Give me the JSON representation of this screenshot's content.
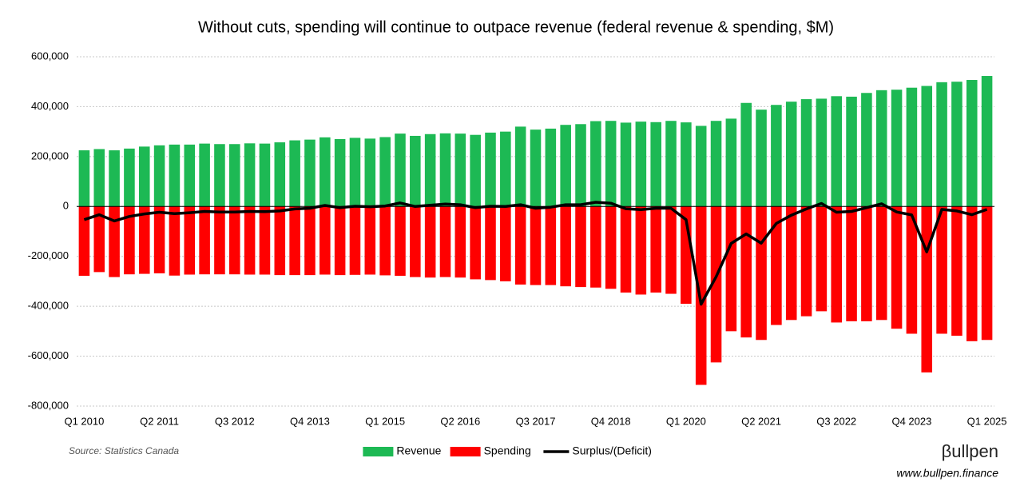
{
  "chart_data": {
    "type": "bar",
    "title": "Without cuts, spending will continue to outpace revenue (federal revenue & spending, $M)",
    "categories": [
      "Q1 2010",
      null,
      null,
      null,
      null,
      "Q2 2011",
      null,
      null,
      null,
      null,
      "Q3 2012",
      null,
      null,
      null,
      null,
      "Q4 2013",
      null,
      null,
      null,
      null,
      "Q1 2015",
      null,
      null,
      null,
      null,
      "Q2 2016",
      null,
      null,
      null,
      null,
      "Q3 2017",
      null,
      null,
      null,
      null,
      "Q4 2018",
      null,
      null,
      null,
      null,
      "Q1 2020",
      null,
      null,
      null,
      null,
      "Q2 2021",
      null,
      null,
      null,
      null,
      "Q3 2022",
      null,
      null,
      null,
      null,
      "Q4 2023",
      null,
      null,
      null,
      null,
      "Q1 2025"
    ],
    "series": [
      {
        "name": "Revenue",
        "type": "bar",
        "color": "#1db954",
        "values": [
          225000,
          230000,
          225000,
          232000,
          240000,
          245000,
          248000,
          248000,
          252000,
          250000,
          250000,
          253000,
          252000,
          257000,
          265000,
          268000,
          277000,
          270000,
          275000,
          272000,
          278000,
          292000,
          283000,
          290000,
          293000,
          292000,
          287000,
          296000,
          300000,
          320000,
          308000,
          312000,
          327000,
          330000,
          342000,
          343000,
          336000,
          340000,
          338000,
          343000,
          337000,
          323000,
          343000,
          352000,
          415000,
          388000,
          407000,
          420000,
          430000,
          432000,
          442000,
          440000,
          455000,
          466000,
          468000,
          476000,
          483000,
          498000,
          500000,
          507000,
          523000
        ]
      },
      {
        "name": "Spending",
        "type": "bar",
        "color": "#ff0000",
        "values": [
          -278000,
          -263000,
          -283000,
          -272000,
          -270000,
          -268000,
          -277000,
          -273000,
          -272000,
          -272000,
          -272000,
          -273000,
          -273000,
          -275000,
          -275000,
          -275000,
          -273000,
          -275000,
          -274000,
          -273000,
          -276000,
          -278000,
          -283000,
          -285000,
          -283000,
          -285000,
          -292000,
          -295000,
          -300000,
          -313000,
          -315000,
          -315000,
          -320000,
          -323000,
          -325000,
          -330000,
          -345000,
          -353000,
          -345000,
          -350000,
          -390000,
          -715000,
          -625000,
          -500000,
          -525000,
          -535000,
          -475000,
          -455000,
          -440000,
          -420000,
          -465000,
          -460000,
          -460000,
          -455000,
          -490000,
          -510000,
          -665000,
          -510000,
          -518000,
          -540000,
          -535000
        ]
      },
      {
        "name": "Surplus/(Deficit)",
        "type": "line",
        "color": "#000000",
        "values": [
          -53000,
          -33000,
          -58000,
          -40000,
          -30000,
          -23000,
          -29000,
          -25000,
          -20000,
          -22000,
          -22000,
          -20000,
          -21000,
          -18000,
          -10000,
          -7000,
          4000,
          -5000,
          1000,
          -1000,
          2000,
          14000,
          0,
          5000,
          10000,
          7000,
          -5000,
          1000,
          0,
          7000,
          -7000,
          -3000,
          7000,
          7000,
          17000,
          13000,
          -9000,
          -13000,
          -7000,
          -7000,
          -53000,
          -392000,
          -282000,
          -148000,
          -110000,
          -147000,
          -68000,
          -35000,
          -10000,
          12000,
          -23000,
          -20000,
          -5000,
          11000,
          -22000,
          -34000,
          -182000,
          -12000,
          -18000,
          -33000,
          -12000
        ]
      }
    ],
    "ylim": [
      -800000,
      600000
    ],
    "yticks": [
      {
        "value": -800000,
        "label": "-800,000"
      },
      {
        "value": -600000,
        "label": "-600,000"
      },
      {
        "value": -400000,
        "label": "-400,000"
      },
      {
        "value": -200000,
        "label": "-200,000"
      },
      0,
      {
        "value": 200000,
        "label": "200,000"
      },
      {
        "value": 400000,
        "label": "400,000"
      },
      {
        "value": 600000,
        "label": "600,000"
      }
    ],
    "grid": true,
    "legend": "bottom",
    "source": "Source: Statistics Canada",
    "brand": "βullpen",
    "website": "www.bullpen.finance"
  }
}
